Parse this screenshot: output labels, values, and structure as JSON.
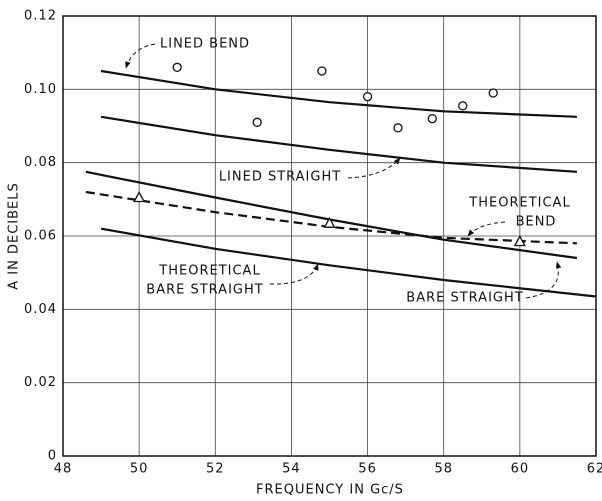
{
  "chart_data": {
    "type": "line",
    "xlabel": "FREQUENCY IN Gc/S",
    "ylabel": "A IN DECIBELS",
    "xlim": [
      48,
      62
    ],
    "xticks": [
      48,
      50,
      52,
      54,
      56,
      58,
      60,
      62
    ],
    "ylim": [
      0,
      0.12
    ],
    "yticks": [
      0,
      0.02,
      0.04,
      0.06,
      {
        "value": 0.08,
        "label": "0.08"
      },
      {
        "value": 0.1,
        "label": "0.10"
      },
      0.12
    ],
    "grid": true,
    "color": "#111111",
    "series": [
      {
        "x": [
          49,
          52,
          55,
          58,
          61.5
        ],
        "values": [
          0.105,
          0.1,
          0.0965,
          0.094,
          0.0925
        ],
        "marker": "none",
        "dash": false
      },
      {
        "x": [
          49,
          52,
          55,
          58,
          61.5
        ],
        "values": [
          0.0925,
          0.0875,
          0.0835,
          0.08,
          0.0775
        ],
        "marker": "none",
        "dash": false
      },
      {
        "x": [
          48.6,
          52,
          55,
          58,
          61.5
        ],
        "values": [
          0.0775,
          0.0705,
          0.0645,
          0.059,
          0.054
        ],
        "marker": "none",
        "dash": false
      },
      {
        "x": [
          48.6,
          52,
          55,
          58,
          61.5
        ],
        "values": [
          0.072,
          0.0665,
          0.0625,
          0.0595,
          0.058
        ],
        "marker": "none",
        "dash": true
      },
      {
        "x": [
          49,
          52,
          55,
          58,
          62
        ],
        "values": [
          0.062,
          0.0565,
          0.052,
          0.048,
          0.0435
        ],
        "marker": "none",
        "dash": false
      },
      {
        "x": [
          51,
          53.1,
          54.8,
          56,
          56.8,
          57.7,
          58.5,
          59.3
        ],
        "values": [
          0.106,
          0.091,
          0.105,
          0.098,
          0.0895,
          0.092,
          0.0955,
          0.099
        ],
        "marker": "circle",
        "dash": false
      },
      {
        "x": [
          50,
          55,
          60
        ],
        "values": [
          0.0705,
          0.0635,
          0.0585
        ],
        "marker": "triangle",
        "dash": false
      }
    ],
    "annotations": [
      [
        "LINED BEND"
      ],
      [
        "LINED STRAIGHT"
      ],
      [
        "THEORETICAL",
        "BEND"
      ],
      [
        "THEORETICAL",
        "BARE STRAIGHT"
      ],
      [
        "BARE STRAIGHT"
      ]
    ]
  }
}
